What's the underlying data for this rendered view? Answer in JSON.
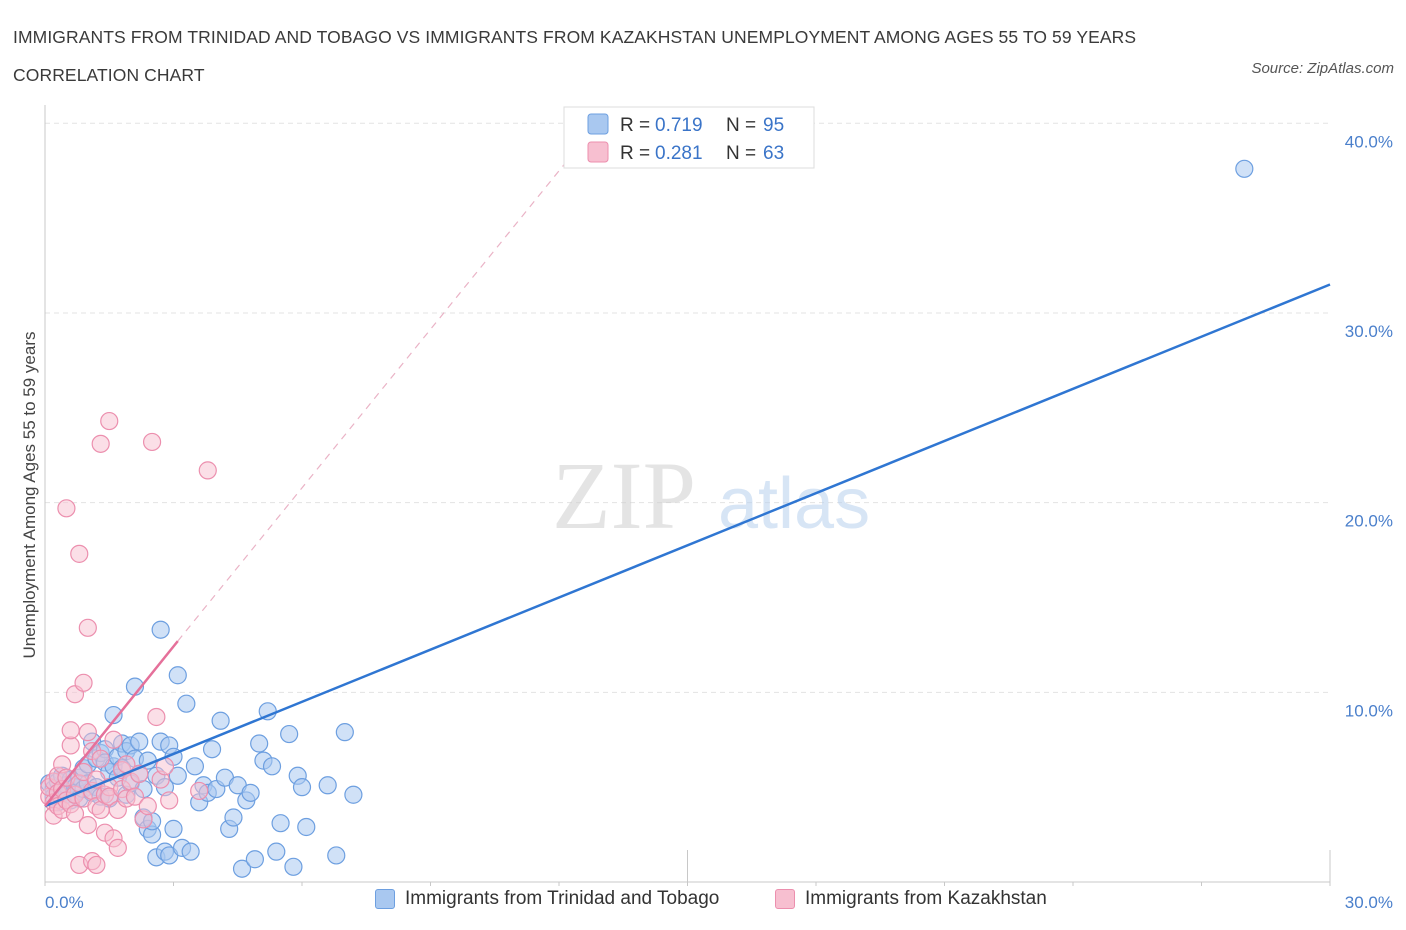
{
  "title": "IMMIGRANTS FROM TRINIDAD AND TOBAGO VS IMMIGRANTS FROM KAZAKHSTAN UNEMPLOYMENT AMONG AGES 55 TO 59 YEARS CORRELATION CHART",
  "source": "Source: ZipAtlas.com",
  "watermark": {
    "zip": "ZIP",
    "atlas": "atlas"
  },
  "colors": {
    "blue_fill": "#a9c8f0",
    "blue_stroke": "#6d9fe0",
    "blue_line": "#2f76d2",
    "pink_fill": "#f7bfd0",
    "pink_stroke": "#ec8fae",
    "pink_line": "#e5709a"
  },
  "legend": {
    "series": [
      {
        "r_label": "R =",
        "r_value": "0.719",
        "n_label": "N =",
        "n_value": "95"
      },
      {
        "r_label": "R =",
        "r_value": "0.281",
        "n_label": "N =",
        "n_value": "63"
      }
    ]
  },
  "bottom_legend": {
    "series_a": "Immigrants from Trinidad and Tobago",
    "series_b": "Immigrants from Kazakhstan"
  },
  "chart_data": {
    "type": "scatter",
    "title": "IMMIGRANTS FROM TRINIDAD AND TOBAGO VS IMMIGRANTS FROM KAZAKHSTAN UNEMPLOYMENT AMONG AGES 55 TO 59 YEARS CORRELATION CHART",
    "xlabel": "",
    "ylabel": "Unemployment Among Ages 55 to 59 years",
    "xlim": [
      0,
      30
    ],
    "ylim": [
      0,
      40.7
    ],
    "x_tick_labels": [
      "0.0%",
      "30.0%"
    ],
    "y_ticks": [
      10,
      20,
      30,
      40
    ],
    "y_tick_labels": [
      "10.0%",
      "20.0%",
      "30.0%",
      "40.0%"
    ],
    "grid": true,
    "series": [
      {
        "name": "Immigrants from Trinidad and Tobago",
        "color": "#a9c8f0",
        "trend": {
          "x": [
            0,
            30
          ],
          "y": [
            4.0,
            31.5
          ],
          "style": "solid"
        },
        "points": [
          [
            0.1,
            5.2
          ],
          [
            0.2,
            4.9
          ],
          [
            0.2,
            4.5
          ],
          [
            0.3,
            5.3
          ],
          [
            0.3,
            4.2
          ],
          [
            0.4,
            4.8
          ],
          [
            0.4,
            5.6
          ],
          [
            0.5,
            5.1
          ],
          [
            0.5,
            4.6
          ],
          [
            0.6,
            5.4
          ],
          [
            0.6,
            4.3
          ],
          [
            0.7,
            5.0
          ],
          [
            0.7,
            4.7
          ],
          [
            0.8,
            5.5
          ],
          [
            0.8,
            4.4
          ],
          [
            0.9,
            6.0
          ],
          [
            0.9,
            4.9
          ],
          [
            1.0,
            6.2
          ],
          [
            1.0,
            5.2
          ],
          [
            1.1,
            4.7
          ],
          [
            1.1,
            7.4
          ],
          [
            1.2,
            6.5
          ],
          [
            1.2,
            5.0
          ],
          [
            1.3,
            6.8
          ],
          [
            1.3,
            4.5
          ],
          [
            1.4,
            7.0
          ],
          [
            1.4,
            6.3
          ],
          [
            1.5,
            5.8
          ],
          [
            1.5,
            4.4
          ],
          [
            1.6,
            6.1
          ],
          [
            1.6,
            8.8
          ],
          [
            1.7,
            6.6
          ],
          [
            1.7,
            5.5
          ],
          [
            1.8,
            7.3
          ],
          [
            1.8,
            6.0
          ],
          [
            1.9,
            4.6
          ],
          [
            1.9,
            6.9
          ],
          [
            2.0,
            7.2
          ],
          [
            2.0,
            5.2
          ],
          [
            2.1,
            10.3
          ],
          [
            2.1,
            6.5
          ],
          [
            2.2,
            7.4
          ],
          [
            2.2,
            5.7
          ],
          [
            2.3,
            4.9
          ],
          [
            2.3,
            3.4
          ],
          [
            2.4,
            6.4
          ],
          [
            2.4,
            2.8
          ],
          [
            2.5,
            2.5
          ],
          [
            2.5,
            3.2
          ],
          [
            2.6,
            5.6
          ],
          [
            2.6,
            1.3
          ],
          [
            2.7,
            13.3
          ],
          [
            2.7,
            7.4
          ],
          [
            2.8,
            5.0
          ],
          [
            2.8,
            1.6
          ],
          [
            2.9,
            7.2
          ],
          [
            2.9,
            1.4
          ],
          [
            3.0,
            6.6
          ],
          [
            3.0,
            2.8
          ],
          [
            3.1,
            5.6
          ],
          [
            3.1,
            10.9
          ],
          [
            3.2,
            1.8
          ],
          [
            3.3,
            9.4
          ],
          [
            3.4,
            1.6
          ],
          [
            3.5,
            6.1
          ],
          [
            3.6,
            4.2
          ],
          [
            3.7,
            5.1
          ],
          [
            3.8,
            4.7
          ],
          [
            3.9,
            7.0
          ],
          [
            4.0,
            4.9
          ],
          [
            4.1,
            8.5
          ],
          [
            4.2,
            5.5
          ],
          [
            4.3,
            2.8
          ],
          [
            4.4,
            3.4
          ],
          [
            4.5,
            5.1
          ],
          [
            4.6,
            0.7
          ],
          [
            4.7,
            4.3
          ],
          [
            4.8,
            4.7
          ],
          [
            4.9,
            1.2
          ],
          [
            5.0,
            7.3
          ],
          [
            5.1,
            6.4
          ],
          [
            5.2,
            9.0
          ],
          [
            5.3,
            6.1
          ],
          [
            5.4,
            1.6
          ],
          [
            5.5,
            3.1
          ],
          [
            5.7,
            7.8
          ],
          [
            5.8,
            0.8
          ],
          [
            5.9,
            5.6
          ],
          [
            6.0,
            5.0
          ],
          [
            6.1,
            2.9
          ],
          [
            6.6,
            5.1
          ],
          [
            6.8,
            1.4
          ],
          [
            7.0,
            7.9
          ],
          [
            7.2,
            4.6
          ],
          [
            28.0,
            37.6
          ]
        ]
      },
      {
        "name": "Immigrants from Kazakhstan",
        "color": "#f7bfd0",
        "trend": {
          "x": [
            0,
            3.1
          ],
          "y": [
            4.0,
            12.7
          ],
          "style": "solid"
        },
        "trend_extended": {
          "x": [
            3.1,
            12.9
          ],
          "y": [
            12.7,
            40.0
          ],
          "style": "dashed"
        },
        "points": [
          [
            0.1,
            4.5
          ],
          [
            0.1,
            5.0
          ],
          [
            0.2,
            4.2
          ],
          [
            0.2,
            3.5
          ],
          [
            0.2,
            5.3
          ],
          [
            0.3,
            4.7
          ],
          [
            0.3,
            4.0
          ],
          [
            0.3,
            5.6
          ],
          [
            0.4,
            3.8
          ],
          [
            0.4,
            4.9
          ],
          [
            0.4,
            6.2
          ],
          [
            0.5,
            19.7
          ],
          [
            0.5,
            4.3
          ],
          [
            0.5,
            5.5
          ],
          [
            0.6,
            7.2
          ],
          [
            0.6,
            8.0
          ],
          [
            0.6,
            4.1
          ],
          [
            0.7,
            9.9
          ],
          [
            0.7,
            4.6
          ],
          [
            0.7,
            3.6
          ],
          [
            0.8,
            17.3
          ],
          [
            0.8,
            5.2
          ],
          [
            0.8,
            0.9
          ],
          [
            0.9,
            5.8
          ],
          [
            0.9,
            10.5
          ],
          [
            0.9,
            4.4
          ],
          [
            1.0,
            13.4
          ],
          [
            1.0,
            7.9
          ],
          [
            1.0,
            3.0
          ],
          [
            1.1,
            4.8
          ],
          [
            1.1,
            6.9
          ],
          [
            1.1,
            1.1
          ],
          [
            1.2,
            5.4
          ],
          [
            1.2,
            4.0
          ],
          [
            1.2,
            0.9
          ],
          [
            1.3,
            23.1
          ],
          [
            1.3,
            6.5
          ],
          [
            1.3,
            3.8
          ],
          [
            1.4,
            4.6
          ],
          [
            1.4,
            2.6
          ],
          [
            1.5,
            24.3
          ],
          [
            1.5,
            5.0
          ],
          [
            1.5,
            4.5
          ],
          [
            1.6,
            7.5
          ],
          [
            1.6,
            2.3
          ],
          [
            1.7,
            3.8
          ],
          [
            1.7,
            1.8
          ],
          [
            1.8,
            5.9
          ],
          [
            1.8,
            4.9
          ],
          [
            1.9,
            4.4
          ],
          [
            1.9,
            6.2
          ],
          [
            2.0,
            5.3
          ],
          [
            2.1,
            4.5
          ],
          [
            2.2,
            5.7
          ],
          [
            2.3,
            3.3
          ],
          [
            2.4,
            4.0
          ],
          [
            2.5,
            23.2
          ],
          [
            2.6,
            8.7
          ],
          [
            2.7,
            5.4
          ],
          [
            2.8,
            6.1
          ],
          [
            2.9,
            4.3
          ],
          [
            3.6,
            4.8
          ],
          [
            3.8,
            21.7
          ]
        ]
      }
    ]
  }
}
